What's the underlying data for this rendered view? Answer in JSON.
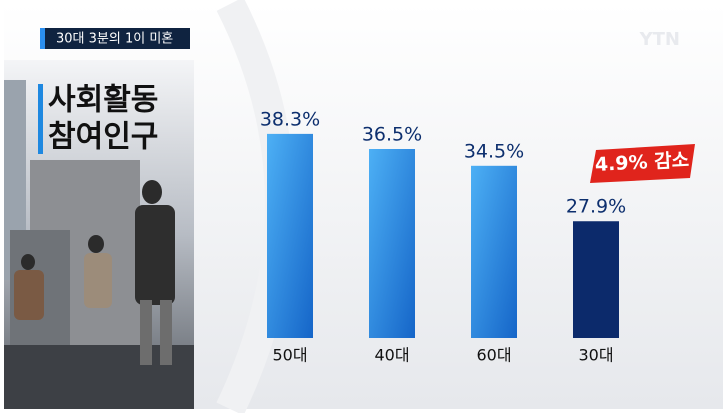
{
  "chart_data": {
    "type": "bar",
    "header": "30대 3분의 1이 미혼",
    "logo": "YTN",
    "title_lines": [
      "사회활동",
      "참여인구"
    ],
    "categories": [
      "50대",
      "40대",
      "60대",
      "30대"
    ],
    "values": [
      38.3,
      36.5,
      34.5,
      27.9
    ],
    "value_labels": [
      "38.3%",
      "36.5%",
      "34.5%",
      "27.9%"
    ],
    "colors": [
      "#1e88e0",
      "#1e88e0",
      "#1e88e0",
      "#0c2a6b"
    ],
    "annotation": "4.9% 감소",
    "ylim": [
      14,
      44
    ]
  }
}
